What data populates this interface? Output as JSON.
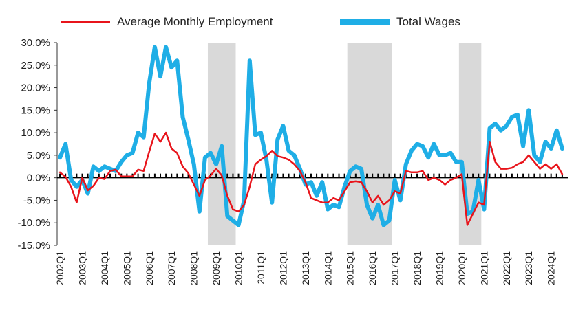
{
  "chart_data": {
    "type": "line",
    "legend_position": "top",
    "grid": false,
    "ylim": [
      -15,
      30
    ],
    "yticks": [
      30,
      25,
      20,
      15,
      10,
      5,
      0,
      -5,
      -10,
      -15
    ],
    "ytick_labels": [
      "30.0%",
      "25.0%",
      "20.0%",
      "15.0%",
      "10.0%",
      "5.0%",
      "0.0%",
      "-5.0%",
      "-10.0%",
      "-15.0%"
    ],
    "x_tick_labels": [
      "2002Q1",
      "2003Q1",
      "2004Q1",
      "2005Q1",
      "2006Q1",
      "2007Q1",
      "2008Q1",
      "2009Q1",
      "2010Q1",
      "2011Q1",
      "2012Q1",
      "2013Q1",
      "2014Q1",
      "2015Q1",
      "2016Q1",
      "2017Q1",
      "2018Q1",
      "2019Q1",
      "2020Q1",
      "2021Q1",
      "2022Q1",
      "2023Q1",
      "2024Q1"
    ],
    "x_start": "2002Q1",
    "shaded_periods": [
      [
        "2008Q4",
        "2009Q4"
      ],
      [
        "2015Q1",
        "2016Q4"
      ],
      [
        "2020Q1",
        "2020Q4"
      ]
    ],
    "series": [
      {
        "name": "Average Monthly Employment",
        "color": "#e8141b",
        "values": [
          1.2,
          0.2,
          -2.0,
          -5.5,
          0.0,
          -2.8,
          -1.8,
          0.0,
          -0.3,
          1.5,
          1.8,
          0.3,
          0.3,
          0.3,
          1.8,
          1.5,
          5.8,
          9.8,
          8.0,
          10.0,
          6.5,
          5.5,
          2.5,
          1.0,
          -1.5,
          -4.0,
          -0.5,
          0.5,
          2.0,
          0.5,
          -4.0,
          -7.0,
          -7.5,
          -6.0,
          -2.0,
          3.0,
          4.0,
          4.8,
          6.0,
          4.8,
          4.5,
          4.0,
          3.0,
          1.5,
          -1.0,
          -4.5,
          -5.0,
          -5.5,
          -5.5,
          -4.5,
          -5.0,
          -3.0,
          -1.0,
          -0.8,
          -1.0,
          -3.0,
          -5.5,
          -4.0,
          -6.0,
          -5.0,
          -3.0,
          -3.5,
          1.5,
          1.2,
          1.2,
          1.5,
          -0.5,
          0.0,
          -0.5,
          -1.5,
          -0.5,
          0.0,
          0.8,
          -10.5,
          -8.0,
          -5.5,
          -6.0,
          8.0,
          3.5,
          2.0,
          2.0,
          2.2,
          3.0,
          3.5,
          5.0,
          3.5,
          2.0,
          3.0,
          2.0,
          3.0,
          0.8
        ]
      },
      {
        "name": "Total Wages",
        "color": "#1faee6",
        "values": [
          4.5,
          7.5,
          -0.5,
          -2.0,
          -0.5,
          -3.5,
          2.5,
          1.5,
          2.5,
          2.0,
          1.5,
          3.5,
          5.0,
          5.5,
          10.0,
          9.0,
          21.0,
          29.0,
          22.5,
          29.0,
          24.5,
          26.0,
          13.5,
          8.5,
          3.0,
          -7.5,
          4.5,
          5.5,
          3.0,
          7.0,
          -8.5,
          -9.5,
          -10.5,
          -5.0,
          26.0,
          9.5,
          10.0,
          4.0,
          -5.5,
          8.5,
          11.5,
          6.0,
          5.0,
          2.0,
          -1.5,
          -1.0,
          -4.0,
          -1.0,
          -7.0,
          -6.0,
          -6.5,
          -2.0,
          1.5,
          2.5,
          2.0,
          -6.0,
          -9.0,
          -6.0,
          -10.5,
          -9.5,
          -0.5,
          -5.0,
          3.0,
          6.0,
          7.5,
          7.0,
          4.5,
          7.5,
          5.0,
          5.0,
          5.5,
          3.5,
          3.5,
          -8.0,
          -7.5,
          -0.5,
          -7.0,
          11.0,
          12.0,
          10.5,
          11.5,
          13.5,
          14.0,
          7.0,
          15.0,
          5.0,
          3.5,
          8.0,
          6.5,
          10.5,
          6.5
        ]
      }
    ]
  }
}
